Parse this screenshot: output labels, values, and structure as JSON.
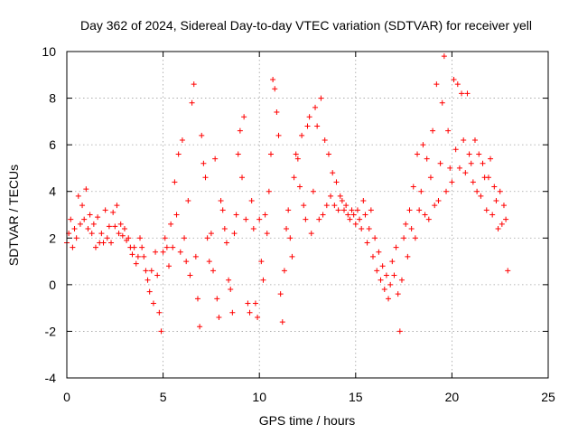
{
  "chart_data": {
    "type": "scatter",
    "title": "Day 362 of 2024, Sidereal Day-to-day VTEC variation (SDTVAR) for receiver yell",
    "xlabel": "GPS time / hours",
    "ylabel": "SDTVAR / TECUs",
    "xlim": [
      0,
      25
    ],
    "ylim": [
      -4,
      10
    ],
    "xticks": [
      0,
      5,
      10,
      15,
      20,
      25
    ],
    "yticks": [
      -4,
      -2,
      0,
      2,
      4,
      6,
      8,
      10
    ],
    "grid": true,
    "marker": "+",
    "color": "#ff0000",
    "series": [
      {
        "name": "SDTVAR",
        "points": [
          [
            0.0,
            1.8
          ],
          [
            0.1,
            2.2
          ],
          [
            0.2,
            2.8
          ],
          [
            0.3,
            1.6
          ],
          [
            0.4,
            2.4
          ],
          [
            0.5,
            2.0
          ],
          [
            0.6,
            3.8
          ],
          [
            0.7,
            2.6
          ],
          [
            0.8,
            3.4
          ],
          [
            0.9,
            2.8
          ],
          [
            1.0,
            4.1
          ],
          [
            1.1,
            2.4
          ],
          [
            1.2,
            3.0
          ],
          [
            1.3,
            2.2
          ],
          [
            1.4,
            2.6
          ],
          [
            1.5,
            1.6
          ],
          [
            1.6,
            2.9
          ],
          [
            1.7,
            1.8
          ],
          [
            1.8,
            2.2
          ],
          [
            1.9,
            1.8
          ],
          [
            2.0,
            3.2
          ],
          [
            2.1,
            2.0
          ],
          [
            2.2,
            2.5
          ],
          [
            2.3,
            1.8
          ],
          [
            2.4,
            3.1
          ],
          [
            2.5,
            2.5
          ],
          [
            2.6,
            3.4
          ],
          [
            2.7,
            2.2
          ],
          [
            2.8,
            2.6
          ],
          [
            2.9,
            2.1
          ],
          [
            3.0,
            2.4
          ],
          [
            3.1,
            1.9
          ],
          [
            3.2,
            2.0
          ],
          [
            3.3,
            1.6
          ],
          [
            3.4,
            1.3
          ],
          [
            3.5,
            1.6
          ],
          [
            3.6,
            0.9
          ],
          [
            3.7,
            1.2
          ],
          [
            3.8,
            2.0
          ],
          [
            3.9,
            1.6
          ],
          [
            4.0,
            1.2
          ],
          [
            4.1,
            0.6
          ],
          [
            4.2,
            0.2
          ],
          [
            4.3,
            -0.3
          ],
          [
            4.4,
            0.6
          ],
          [
            4.5,
            -0.8
          ],
          [
            4.6,
            1.4
          ],
          [
            4.7,
            0.4
          ],
          [
            4.8,
            -1.2
          ],
          [
            4.9,
            -2.0
          ],
          [
            5.0,
            1.4
          ],
          [
            5.1,
            2.0
          ],
          [
            5.2,
            1.6
          ],
          [
            5.3,
            0.8
          ],
          [
            5.4,
            2.6
          ],
          [
            5.5,
            1.6
          ],
          [
            5.6,
            4.4
          ],
          [
            5.7,
            3.0
          ],
          [
            5.8,
            5.6
          ],
          [
            5.9,
            1.4
          ],
          [
            6.0,
            6.2
          ],
          [
            6.1,
            2.0
          ],
          [
            6.2,
            1.0
          ],
          [
            6.3,
            3.6
          ],
          [
            6.4,
            0.4
          ],
          [
            6.5,
            7.8
          ],
          [
            6.6,
            8.6
          ],
          [
            6.7,
            1.2
          ],
          [
            6.8,
            -0.6
          ],
          [
            6.9,
            -1.8
          ],
          [
            7.0,
            6.4
          ],
          [
            7.1,
            5.2
          ],
          [
            7.2,
            4.6
          ],
          [
            7.3,
            2.0
          ],
          [
            7.4,
            1.0
          ],
          [
            7.5,
            2.2
          ],
          [
            7.6,
            0.6
          ],
          [
            7.7,
            5.4
          ],
          [
            7.8,
            -0.6
          ],
          [
            7.9,
            -1.4
          ],
          [
            8.0,
            3.6
          ],
          [
            8.1,
            3.2
          ],
          [
            8.2,
            2.4
          ],
          [
            8.3,
            1.8
          ],
          [
            8.4,
            0.2
          ],
          [
            8.5,
            -0.2
          ],
          [
            8.6,
            -1.2
          ],
          [
            8.7,
            2.2
          ],
          [
            8.8,
            3.0
          ],
          [
            8.9,
            5.6
          ],
          [
            9.0,
            6.6
          ],
          [
            9.1,
            4.6
          ],
          [
            9.2,
            7.2
          ],
          [
            9.3,
            2.8
          ],
          [
            9.4,
            -0.8
          ],
          [
            9.5,
            -1.2
          ],
          [
            9.6,
            3.6
          ],
          [
            9.7,
            2.4
          ],
          [
            9.8,
            -0.8
          ],
          [
            9.9,
            -1.4
          ],
          [
            10.0,
            2.8
          ],
          [
            10.1,
            1.0
          ],
          [
            10.2,
            0.2
          ],
          [
            10.3,
            3.0
          ],
          [
            10.4,
            2.2
          ],
          [
            10.5,
            4.0
          ],
          [
            10.6,
            5.6
          ],
          [
            10.7,
            8.8
          ],
          [
            10.8,
            8.4
          ],
          [
            10.9,
            7.4
          ],
          [
            11.0,
            6.4
          ],
          [
            11.1,
            -0.4
          ],
          [
            11.2,
            -1.6
          ],
          [
            11.3,
            0.6
          ],
          [
            11.4,
            2.4
          ],
          [
            11.5,
            3.2
          ],
          [
            11.6,
            2.0
          ],
          [
            11.7,
            1.2
          ],
          [
            11.8,
            4.6
          ],
          [
            11.9,
            5.6
          ],
          [
            12.0,
            5.4
          ],
          [
            12.1,
            4.2
          ],
          [
            12.2,
            6.4
          ],
          [
            12.3,
            3.4
          ],
          [
            12.4,
            2.8
          ],
          [
            12.5,
            6.8
          ],
          [
            12.6,
            7.2
          ],
          [
            12.7,
            2.2
          ],
          [
            12.8,
            4.0
          ],
          [
            12.9,
            7.6
          ],
          [
            13.0,
            6.8
          ],
          [
            13.1,
            2.8
          ],
          [
            13.2,
            8.0
          ],
          [
            13.3,
            3.0
          ],
          [
            13.4,
            6.2
          ],
          [
            13.5,
            3.4
          ],
          [
            13.6,
            5.6
          ],
          [
            13.7,
            3.8
          ],
          [
            13.8,
            4.8
          ],
          [
            13.9,
            3.4
          ],
          [
            14.0,
            4.4
          ],
          [
            14.1,
            3.2
          ],
          [
            14.2,
            3.8
          ],
          [
            14.3,
            3.6
          ],
          [
            14.4,
            3.2
          ],
          [
            14.5,
            3.4
          ],
          [
            14.6,
            3.0
          ],
          [
            14.7,
            2.8
          ],
          [
            14.8,
            3.2
          ],
          [
            14.9,
            3.0
          ],
          [
            15.0,
            2.6
          ],
          [
            15.1,
            3.2
          ],
          [
            15.2,
            2.8
          ],
          [
            15.3,
            2.4
          ],
          [
            15.4,
            3.6
          ],
          [
            15.5,
            3.0
          ],
          [
            15.6,
            1.8
          ],
          [
            15.7,
            2.4
          ],
          [
            15.8,
            3.2
          ],
          [
            15.9,
            1.2
          ],
          [
            16.0,
            2.0
          ],
          [
            16.1,
            0.6
          ],
          [
            16.2,
            1.4
          ],
          [
            16.3,
            0.2
          ],
          [
            16.4,
            0.8
          ],
          [
            16.5,
            -0.2
          ],
          [
            16.6,
            0.4
          ],
          [
            16.7,
            -0.6
          ],
          [
            16.8,
            0.0
          ],
          [
            16.9,
            1.0
          ],
          [
            17.0,
            0.4
          ],
          [
            17.1,
            1.6
          ],
          [
            17.2,
            -0.4
          ],
          [
            17.3,
            -2.0
          ],
          [
            17.4,
            0.2
          ],
          [
            17.5,
            2.0
          ],
          [
            17.6,
            2.6
          ],
          [
            17.7,
            1.2
          ],
          [
            17.8,
            3.2
          ],
          [
            17.9,
            2.4
          ],
          [
            18.0,
            4.2
          ],
          [
            18.1,
            2.0
          ],
          [
            18.2,
            5.6
          ],
          [
            18.3,
            3.2
          ],
          [
            18.4,
            4.0
          ],
          [
            18.5,
            6.0
          ],
          [
            18.6,
            3.0
          ],
          [
            18.7,
            5.4
          ],
          [
            18.8,
            2.8
          ],
          [
            18.9,
            4.6
          ],
          [
            19.0,
            6.6
          ],
          [
            19.1,
            3.4
          ],
          [
            19.2,
            8.6
          ],
          [
            19.3,
            3.6
          ],
          [
            19.4,
            5.2
          ],
          [
            19.5,
            7.8
          ],
          [
            19.6,
            9.8
          ],
          [
            19.7,
            4.0
          ],
          [
            19.8,
            6.6
          ],
          [
            19.9,
            5.0
          ],
          [
            20.0,
            4.4
          ],
          [
            20.1,
            8.8
          ],
          [
            20.2,
            5.8
          ],
          [
            20.3,
            8.6
          ],
          [
            20.4,
            5.0
          ],
          [
            20.5,
            8.2
          ],
          [
            20.6,
            6.2
          ],
          [
            20.7,
            4.8
          ],
          [
            20.8,
            8.2
          ],
          [
            20.9,
            5.6
          ],
          [
            21.0,
            5.2
          ],
          [
            21.1,
            4.4
          ],
          [
            21.2,
            6.2
          ],
          [
            21.3,
            4.0
          ],
          [
            21.4,
            5.6
          ],
          [
            21.5,
            3.8
          ],
          [
            21.6,
            5.2
          ],
          [
            21.7,
            4.6
          ],
          [
            21.8,
            3.2
          ],
          [
            21.9,
            4.6
          ],
          [
            22.0,
            5.4
          ],
          [
            22.1,
            3.0
          ],
          [
            22.2,
            4.2
          ],
          [
            22.3,
            3.6
          ],
          [
            22.4,
            2.4
          ],
          [
            22.5,
            4.0
          ],
          [
            22.6,
            2.6
          ],
          [
            22.7,
            3.4
          ],
          [
            22.8,
            2.8
          ],
          [
            22.9,
            0.6
          ]
        ]
      }
    ]
  }
}
